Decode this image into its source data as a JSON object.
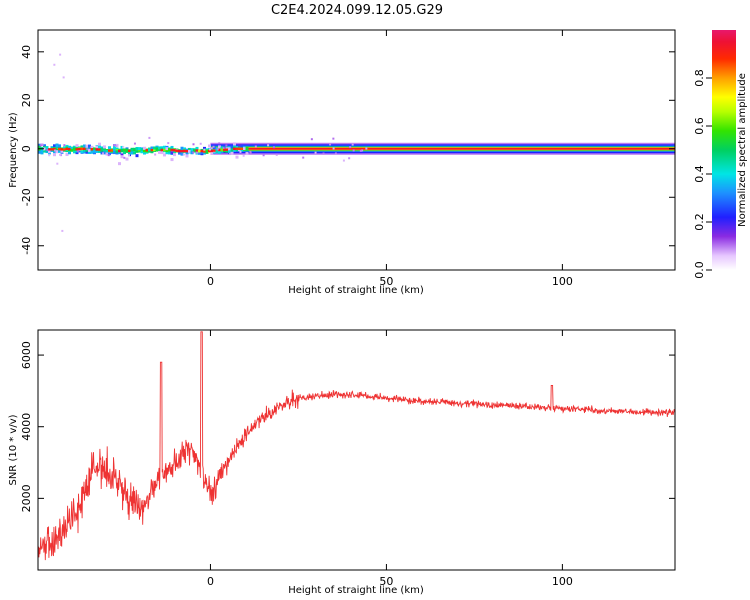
{
  "title": "C2E4.2024.099.12.05.G29",
  "chart_data": [
    {
      "type": "heatmap",
      "xlabel": "Height of straight line (km)",
      "ylabel": "Frequency (Hz)",
      "xlim": [
        -49,
        132
      ],
      "ylim": [
        -50,
        49
      ],
      "xticks": [
        0,
        50,
        100
      ],
      "yticks": [
        -40,
        -20,
        0,
        20,
        40
      ],
      "colorbar": {
        "label": "Normalized spectral amplitude",
        "range": [
          0,
          1
        ],
        "ticks": [
          0.0,
          0.2,
          0.4,
          0.6,
          0.8
        ]
      },
      "features": [
        {
          "description": "steady tone",
          "x_range": [
            0,
            132
          ],
          "frequency": 0
        },
        {
          "description": "scattered noisy tone",
          "x_range": [
            -49,
            10
          ],
          "frequency_range": [
            -5,
            4
          ]
        }
      ]
    },
    {
      "type": "line",
      "xlabel": "Height of straight line (km)",
      "ylabel": "SNR (10 * v/v)",
      "xlim": [
        -49,
        132
      ],
      "ylim": [
        0,
        6700
      ],
      "xticks": [
        0,
        50,
        100
      ],
      "yticks": [
        2000,
        4000,
        6000
      ],
      "series": [
        {
          "color": "#ee3333",
          "x": [
            -49,
            -45,
            -42,
            -40,
            -38,
            -36,
            -34,
            -32,
            -30,
            -28,
            -26,
            -24,
            -22,
            -20,
            -18,
            -16,
            -14,
            -12,
            -10,
            -8,
            -6,
            -4,
            -2,
            0,
            2,
            5,
            8,
            11,
            14,
            17,
            20,
            23,
            26,
            30,
            35,
            40,
            45,
            50,
            55,
            60,
            65,
            70,
            75,
            80,
            85,
            90,
            95,
            100,
            105,
            110,
            115,
            120,
            125,
            132
          ],
          "y": [
            500,
            800,
            1100,
            1300,
            1600,
            2100,
            2700,
            2900,
            2800,
            2600,
            2400,
            2100,
            1800,
            1700,
            1900,
            2300,
            2600,
            2700,
            2900,
            3100,
            3300,
            3200,
            2600,
            2200,
            2500,
            3000,
            3500,
            3900,
            4200,
            4400,
            4600,
            4700,
            4800,
            4850,
            4900,
            4900,
            4850,
            4800,
            4750,
            4700,
            4700,
            4650,
            4650,
            4600,
            4600,
            4550,
            4550,
            4500,
            4500,
            4450,
            4450,
            4400,
            4400,
            4400
          ]
        }
      ]
    }
  ]
}
